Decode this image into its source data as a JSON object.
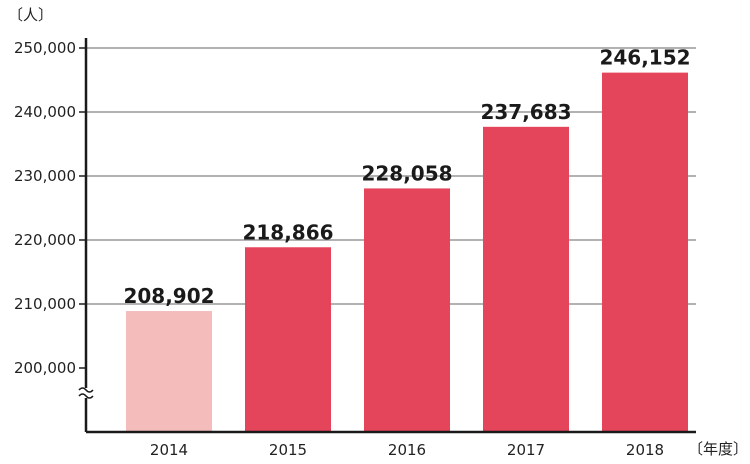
{
  "chart_data": {
    "type": "bar",
    "categories": [
      "2014",
      "2015",
      "2016",
      "2017",
      "2018"
    ],
    "values": [
      208902,
      218866,
      228058,
      237683,
      246152
    ],
    "data_labels": [
      "208,902",
      "218,866",
      "228,058",
      "237,683",
      "246,152"
    ],
    "yticks": [
      200000,
      210000,
      220000,
      230000,
      240000,
      250000
    ],
    "ytick_labels": [
      "200,000",
      "210,000",
      "220,000",
      "230,000",
      "240,000",
      "250,000"
    ],
    "ylim": [
      200000,
      250000
    ],
    "y_axis_broken": true,
    "ylabel": "〔人〕",
    "xlabel": "〔年度〕",
    "grid": true,
    "colors": {
      "bar": "#e5455a",
      "bar_highlight": "#f5bcbc",
      "grid": "#999999",
      "axis": "#1a1a1a"
    },
    "highlight_index": 0
  }
}
